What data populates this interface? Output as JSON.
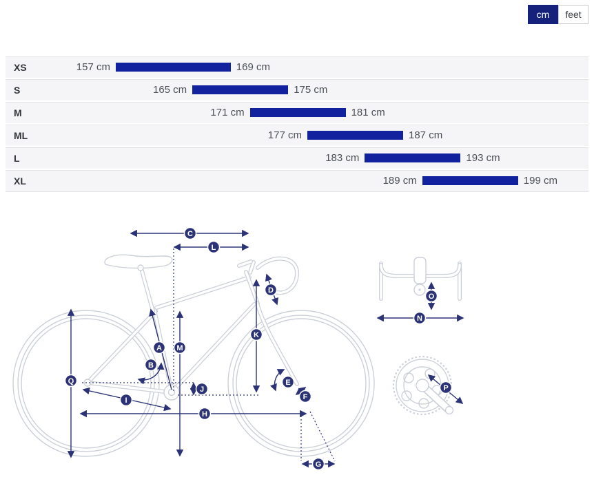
{
  "unit": "cm",
  "toggle": {
    "cm_label": "cm",
    "feet_label": "feet",
    "active": "cm"
  },
  "sizes": [
    {
      "label": "XS",
      "min": 157,
      "max": 169,
      "min_label": "157 cm",
      "max_label": "169 cm"
    },
    {
      "label": "S",
      "min": 165,
      "max": 175,
      "min_label": "165 cm",
      "max_label": "175 cm"
    },
    {
      "label": "M",
      "min": 171,
      "max": 181,
      "min_label": "171 cm",
      "max_label": "181 cm"
    },
    {
      "label": "ML",
      "min": 177,
      "max": 187,
      "min_label": "177 cm",
      "max_label": "187 cm"
    },
    {
      "label": "L",
      "min": 183,
      "max": 193,
      "min_label": "183 cm",
      "max_label": "193 cm"
    },
    {
      "label": "XL",
      "min": 189,
      "max": 199,
      "min_label": "189 cm",
      "max_label": "199 cm"
    }
  ],
  "colors": {
    "bar_blue": "#12219e",
    "toggle_active": "#16217c",
    "diagram_navy": "#2b3376",
    "bike_line": "#ccd0d8",
    "row_bg": "#f5f5f7",
    "row_border": "#e2e3e7"
  },
  "diagram": {
    "badges": {
      "a": "A",
      "b": "B",
      "c": "C",
      "d": "D",
      "e": "E",
      "f": "F",
      "g": "G",
      "h": "H",
      "i": "I",
      "j": "J",
      "k": "K",
      "l": "L",
      "m": "M",
      "n": "N",
      "o": "O",
      "p": "P",
      "q": "Q"
    }
  }
}
